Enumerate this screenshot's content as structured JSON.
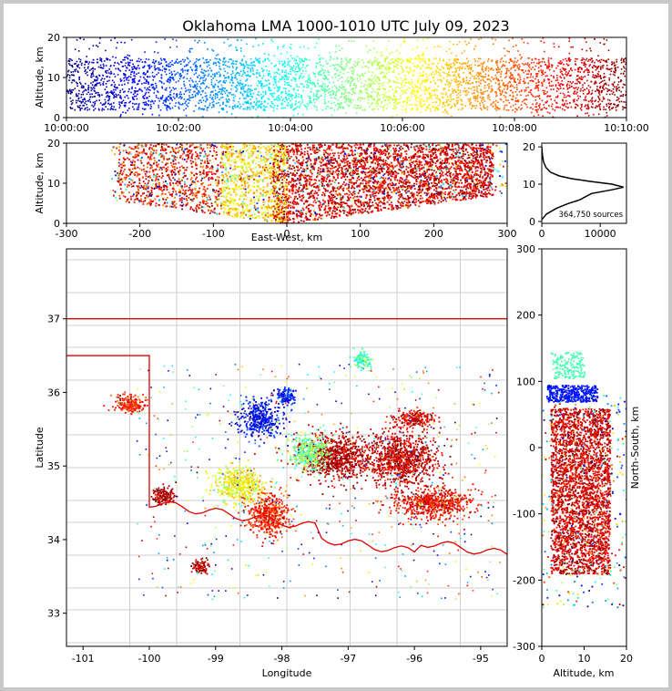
{
  "chart_data": {
    "title": "Oklahoma LMA 1000-1010 UTC July 09, 2023",
    "panels": [
      {
        "id": "time-height",
        "type": "scatter",
        "xlabel": "",
        "ylabel": "Altitude, km",
        "xlim": [
          0,
          600
        ],
        "ylim": [
          0,
          20
        ],
        "x_ticks": [
          "10:00:00",
          "10:02:00",
          "10:04:00",
          "10:06:00",
          "10:08:00",
          "10:10:00"
        ],
        "y_ticks": [
          0,
          10,
          20
        ],
        "color_by": "time",
        "colormap": "jet",
        "density_core_km": [
          2,
          15
        ]
      },
      {
        "id": "ew-height",
        "type": "scatter",
        "xlabel": "East-West, km",
        "ylabel": "Altitude, km",
        "xlim": [
          -300,
          300
        ],
        "ylim": [
          0,
          20
        ],
        "x_ticks": [
          -300,
          -200,
          -100,
          0,
          100,
          200,
          300
        ],
        "y_ticks": [
          0,
          10,
          20
        ]
      },
      {
        "id": "altitude-histogram",
        "type": "line",
        "xlim": [
          0,
          14500
        ],
        "ylim": [
          -0.5,
          21
        ],
        "x_ticks": [
          0,
          10000
        ],
        "y_ticks": [
          0,
          10,
          20
        ],
        "annotation": "364,750 sources",
        "curve": [
          [
            0,
            0.5
          ],
          [
            800,
            2
          ],
          [
            2500,
            3.5
          ],
          [
            4500,
            4.8
          ],
          [
            6500,
            5.8
          ],
          [
            8500,
            7.5
          ],
          [
            12000,
            8.5
          ],
          [
            14000,
            9.2
          ],
          [
            12000,
            10
          ],
          [
            8000,
            10.8
          ],
          [
            5000,
            11.5
          ],
          [
            3000,
            12.2
          ],
          [
            1500,
            13.2
          ],
          [
            700,
            14.5
          ],
          [
            300,
            16
          ],
          [
            100,
            18
          ],
          [
            0,
            20
          ]
        ]
      },
      {
        "id": "plan-view",
        "type": "scatter",
        "xlabel": "Longitude",
        "ylabel": "Latitude",
        "xlim": [
          -101.25,
          -94.6
        ],
        "ylim": [
          32.55,
          37.95
        ],
        "x_ticks": [
          -101,
          -100,
          -99,
          -98,
          -97,
          -96,
          -95
        ],
        "y_ticks": [
          33,
          34,
          35,
          36,
          37
        ],
        "clusters": [
          {
            "lon": -98.35,
            "lat": 35.65,
            "spread": [
              0.25,
              0.2
            ],
            "time": 0.12
          },
          {
            "lon": -97.95,
            "lat": 35.95,
            "spread": [
              0.12,
              0.1
            ],
            "time": 0.14
          },
          {
            "lon": -98.65,
            "lat": 34.75,
            "spread": [
              0.3,
              0.2
            ],
            "time": 0.62
          },
          {
            "lon": -98.2,
            "lat": 34.35,
            "spread": [
              0.25,
              0.25
            ],
            "time": 0.85
          },
          {
            "lon": -97.2,
            "lat": 35.15,
            "spread": [
              0.45,
              0.25
            ],
            "time": 0.95
          },
          {
            "lon": -96.2,
            "lat": 35.1,
            "spread": [
              0.45,
              0.3
            ],
            "time": 0.93
          },
          {
            "lon": -95.7,
            "lat": 34.5,
            "spread": [
              0.5,
              0.18
            ],
            "time": 0.88
          },
          {
            "lon": -96.0,
            "lat": 35.65,
            "spread": [
              0.25,
              0.1
            ],
            "time": 0.9
          },
          {
            "lon": -99.8,
            "lat": 34.6,
            "spread": [
              0.15,
              0.1
            ],
            "time": 0.97
          },
          {
            "lon": -100.3,
            "lat": 35.85,
            "spread": [
              0.2,
              0.1
            ],
            "time": 0.85
          },
          {
            "lon": -96.8,
            "lat": 36.45,
            "spread": [
              0.12,
              0.1
            ],
            "time": 0.45
          },
          {
            "lon": -99.25,
            "lat": 33.65,
            "spread": [
              0.1,
              0.08
            ],
            "time": 0.95
          },
          {
            "lon": -97.6,
            "lat": 35.2,
            "spread": [
              0.25,
              0.2
            ],
            "time": 0.5
          }
        ]
      },
      {
        "id": "height-ns",
        "type": "scatter",
        "xlabel": "Altitude, km",
        "ylabel": "North-South, km",
        "xlim": [
          0,
          20
        ],
        "ylim": [
          -300,
          300
        ],
        "x_ticks": [
          0,
          10,
          20
        ],
        "y_ticks": [
          -300,
          -200,
          -100,
          0,
          100,
          200,
          300
        ]
      }
    ]
  }
}
